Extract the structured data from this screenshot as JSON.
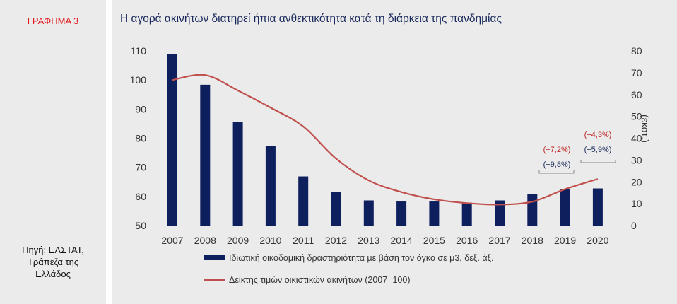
{
  "panel": {
    "chart_label": "ΓΡΑΦΗΜΑ 3",
    "source": "Πηγή: ΕΛΣΤΑΤ,\nΤράπεζα της\nΕλλάδος"
  },
  "colors": {
    "bars": "#0d1f5c",
    "line": "#c0504d",
    "title": "#1b2a5c",
    "label": "#e3171d",
    "ann_red": "#c0211f",
    "ann_blue": "#1b2a5c"
  },
  "chart_data": {
    "type": "bar+line",
    "title": "Η αγορά ακινήτων διατηρεί ήπια ανθεκτικότητα κατά τη διάρκεια της πανδημίας",
    "categories": [
      "2007",
      "2008",
      "2009",
      "2010",
      "2011",
      "2012",
      "2013",
      "2014",
      "2015",
      "2016",
      "2017",
      "2018",
      "2019",
      "2020"
    ],
    "left_axis": {
      "min": 50,
      "max": 110,
      "ticks": [
        50,
        60,
        70,
        80,
        90,
        100,
        110
      ]
    },
    "right_axis": {
      "min": 0,
      "max": 80,
      "ticks": [
        0,
        10,
        20,
        30,
        40,
        50,
        60,
        70,
        80
      ],
      "label": "(εκατ.)"
    },
    "series": [
      {
        "name": "Ιδιωτική οικοδομική δραστηριότητα με βάση τον όγκο σε μ3, δεξ. άξ.",
        "type": "bar",
        "axis": "right",
        "values": [
          78.5,
          64.5,
          47.5,
          36.5,
          22.5,
          15.5,
          11.5,
          11,
          11,
          10.5,
          11.5,
          14.5,
          16.5,
          17
        ]
      },
      {
        "name": "Δείκτης τιμών οικιστικών ακινήτων (2007=100)",
        "type": "line",
        "axis": "left",
        "values": [
          100,
          101.7,
          96.4,
          90.5,
          84,
          73,
          65.5,
          61.5,
          59,
          57.7,
          57.2,
          58.2,
          62.5,
          66
        ]
      }
    ],
    "annotations": [
      {
        "text": "(+7,2%)",
        "color": "red",
        "group": "2018-2019"
      },
      {
        "text": "(+9,8%)",
        "color": "blue",
        "group": "2018-2019"
      },
      {
        "text": "(+4,3%)",
        "color": "red",
        "group": "2019-2020"
      },
      {
        "text": "(+5,9%)",
        "color": "blue",
        "group": "2019-2020"
      }
    ],
    "legend": "bottom"
  }
}
